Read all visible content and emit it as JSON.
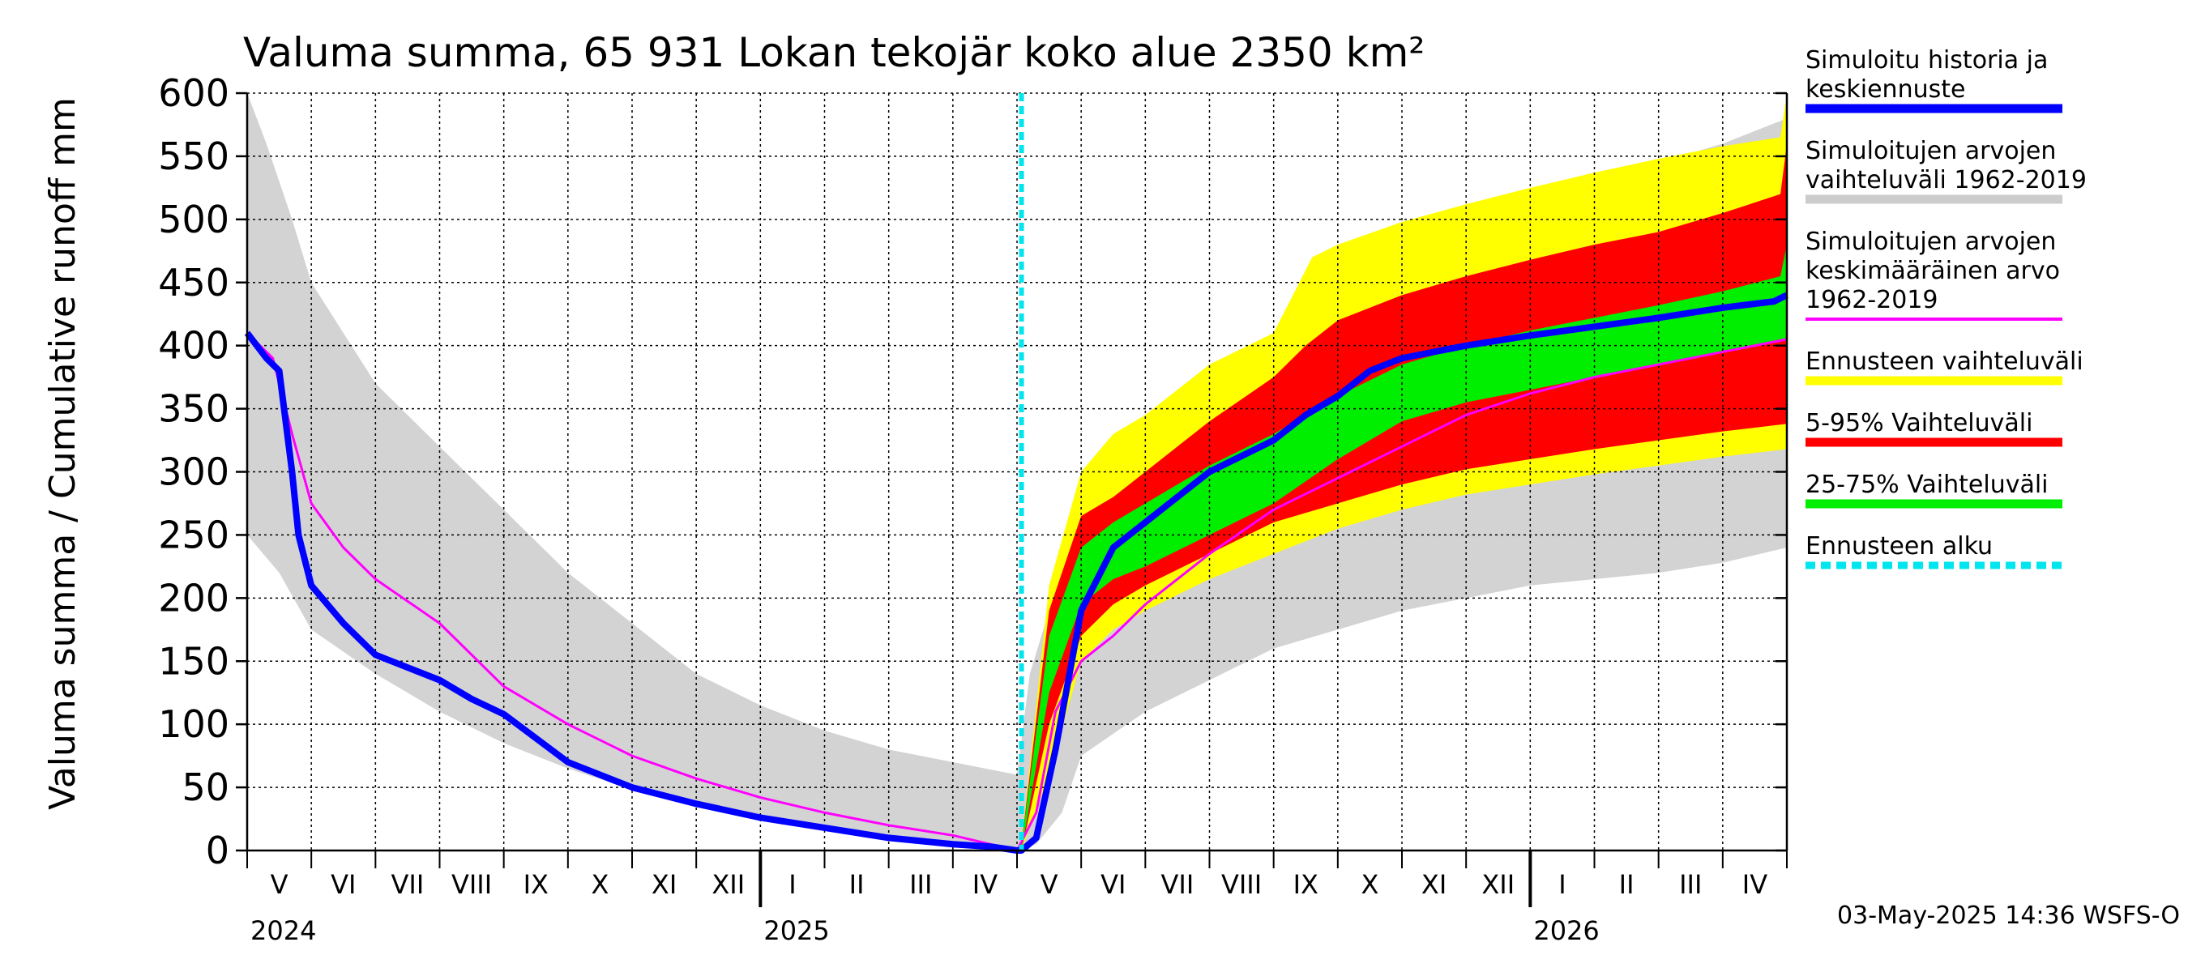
{
  "chart_data": {
    "type": "area",
    "title": "Valuma summa, 65 931 Lokan tekojär koko alue 2350 km²",
    "ylabel": "Valuma summa / Cumulative runoff    mm",
    "ylim": [
      0,
      600
    ],
    "yticks": [
      0,
      50,
      100,
      150,
      200,
      250,
      300,
      350,
      400,
      450,
      500,
      550,
      600
    ],
    "xrange_months": [
      0,
      24
    ],
    "forecast_start_month": 12.07,
    "month_labels": [
      "V",
      "VI",
      "VII",
      "VIII",
      "IX",
      "X",
      "XI",
      "XII",
      "I",
      "II",
      "III",
      "IV",
      "V",
      "VI",
      "VII",
      "VIII",
      "IX",
      "X",
      "XI",
      "XII",
      "I",
      "II",
      "III",
      "IV"
    ],
    "year_labels": [
      {
        "label": "2024",
        "month": 0
      },
      {
        "label": "2025",
        "month": 8
      },
      {
        "label": "2026",
        "month": 20
      }
    ],
    "footer": "03-May-2025 14:36 WSFS-O",
    "legend": [
      {
        "label_lines": [
          "Simuloitu historia ja",
          "keskiennuste"
        ],
        "color": "#0000ff",
        "style": "line"
      },
      {
        "label_lines": [
          "Simuloitujen arvojen",
          "vaihteluväli 1962-2019"
        ],
        "color": "#cccccc",
        "style": "line"
      },
      {
        "label_lines": [
          "Simuloitujen arvojen",
          "keskimääräinen arvo",
          "   1962-2019"
        ],
        "color": "#ff00ff",
        "style": "thin"
      },
      {
        "label_lines": [
          "Ennusteen vaihteluväli"
        ],
        "color": "#ffff00",
        "style": "line"
      },
      {
        "label_lines": [
          "5-95% Vaihteluväli"
        ],
        "color": "#ff0000",
        "style": "line"
      },
      {
        "label_lines": [
          "25-75% Vaihteluväli"
        ],
        "color": "#00ee00",
        "style": "line"
      },
      {
        "label_lines": [
          "Ennusteen alku"
        ],
        "color": "#00e5ee",
        "style": "dashed"
      }
    ],
    "series": [
      {
        "name": "Simuloitujen arvojen vaihteluväli 1962-2019 (max)",
        "color": "#d3d3d3",
        "x": [
          0,
          0.3,
          0.7,
          1,
          1.5,
          2,
          3,
          4,
          5,
          6,
          7,
          8,
          9,
          10,
          11,
          12,
          12.2,
          12.5,
          13,
          14,
          15,
          16,
          17,
          18,
          19,
          20,
          21,
          22,
          23,
          24
        ],
        "y": [
          600,
          560,
          500,
          450,
          410,
          370,
          320,
          270,
          220,
          180,
          140,
          115,
          95,
          80,
          70,
          60,
          140,
          190,
          220,
          290,
          350,
          390,
          430,
          470,
          490,
          510,
          530,
          545,
          560,
          580
        ]
      },
      {
        "name": "Simuloitujen arvojen vaihteluväli 1962-2019 (min)",
        "color": "#d3d3d3",
        "x": [
          0,
          0.5,
          1,
          2,
          3,
          4,
          5,
          6,
          7,
          8,
          9,
          10,
          11,
          12,
          12.3,
          12.7,
          13,
          14,
          15,
          16,
          17,
          18,
          19,
          20,
          21,
          22,
          23,
          24
        ],
        "y": [
          250,
          220,
          175,
          140,
          110,
          85,
          65,
          48,
          36,
          27,
          19,
          12,
          5,
          0,
          5,
          30,
          75,
          110,
          135,
          160,
          175,
          190,
          200,
          210,
          215,
          220,
          228,
          240
        ]
      },
      {
        "name": "Ennusteen vaihteluväli (max)",
        "color": "#ffff00",
        "x": [
          12.07,
          12.5,
          13,
          13.5,
          14,
          15,
          16,
          16.3,
          16.6,
          17,
          18,
          19,
          20,
          21,
          22,
          23,
          23.9,
          24
        ],
        "y": [
          5,
          210,
          300,
          330,
          345,
          385,
          410,
          440,
          470,
          480,
          498,
          512,
          525,
          537,
          548,
          558,
          565,
          600
        ]
      },
      {
        "name": "Ennusteen vaihteluväli (min)",
        "color": "#ffff00",
        "x": [
          12.07,
          12.5,
          13,
          13.5,
          14,
          15,
          16,
          17,
          18,
          19,
          20,
          21,
          22,
          23,
          24
        ],
        "y": [
          0,
          60,
          150,
          175,
          190,
          215,
          235,
          255,
          270,
          282,
          290,
          298,
          305,
          312,
          318
        ]
      },
      {
        "name": "5-95% Vaihteluväli (max)",
        "color": "#ff0000",
        "x": [
          12.07,
          12.5,
          13,
          13.5,
          14,
          15,
          16,
          16.5,
          17,
          18,
          19,
          20,
          21,
          22,
          23,
          23.9,
          24
        ],
        "y": [
          5,
          190,
          265,
          280,
          300,
          340,
          375,
          400,
          420,
          440,
          455,
          468,
          480,
          490,
          505,
          520,
          560
        ]
      },
      {
        "name": "5-95% Vaihteluväli (min)",
        "color": "#ff0000",
        "x": [
          12.07,
          12.5,
          13,
          13.5,
          14,
          15,
          16,
          17,
          18,
          19,
          20,
          21,
          22,
          23,
          24
        ],
        "y": [
          0,
          100,
          170,
          195,
          210,
          235,
          260,
          275,
          290,
          302,
          310,
          318,
          325,
          332,
          338
        ]
      },
      {
        "name": "25-75% Vaihteluväli (max)",
        "color": "#00ee00",
        "x": [
          12.07,
          12.5,
          13,
          13.5,
          14,
          15,
          16,
          17,
          18,
          19,
          20,
          21,
          22,
          23,
          23.9,
          24
        ],
        "y": [
          5,
          170,
          240,
          260,
          275,
          305,
          330,
          360,
          385,
          400,
          412,
          422,
          432,
          443,
          455,
          480
        ]
      },
      {
        "name": "25-75% Vaihteluväli (min)",
        "color": "#00ee00",
        "x": [
          12.07,
          12.5,
          13,
          13.5,
          14,
          15,
          16,
          17,
          18,
          19,
          20,
          21,
          22,
          23,
          24
        ],
        "y": [
          0,
          125,
          195,
          215,
          225,
          250,
          275,
          310,
          340,
          355,
          365,
          375,
          385,
          395,
          405
        ]
      },
      {
        "name": "Simuloitujen arvojen keskimääräinen arvo 1962-2019",
        "color": "#ff00ff",
        "x": [
          0,
          0.4,
          0.7,
          1,
          1.5,
          2,
          3,
          4,
          5,
          6,
          7,
          8,
          9,
          10,
          11,
          12,
          12.3,
          12.6,
          13,
          13.5,
          14,
          15,
          16,
          17,
          18,
          19,
          20,
          21,
          22,
          23,
          24
        ],
        "y": [
          410,
          390,
          330,
          275,
          240,
          215,
          180,
          130,
          100,
          75,
          57,
          42,
          30,
          20,
          12,
          0,
          30,
          110,
          150,
          170,
          195,
          235,
          270,
          295,
          320,
          345,
          362,
          375,
          385,
          395,
          405
        ]
      },
      {
        "name": "Simuloitu historia ja keskiennuste",
        "color": "#0000ff",
        "x": [
          0,
          0.3,
          0.5,
          0.7,
          0.8,
          1,
          1.5,
          2,
          2.5,
          3,
          3.5,
          4,
          5,
          6,
          7,
          8,
          9,
          10,
          11,
          11.6,
          12,
          12.07,
          12.3,
          12.6,
          13,
          13.5,
          14,
          14.5,
          15,
          16,
          16.5,
          17,
          17.5,
          18,
          19,
          20,
          21,
          22,
          23,
          23.8,
          24
        ],
        "y": [
          410,
          390,
          380,
          300,
          250,
          210,
          180,
          155,
          145,
          135,
          120,
          108,
          70,
          50,
          37,
          26,
          18,
          10,
          5,
          3,
          0,
          0,
          10,
          80,
          190,
          240,
          260,
          280,
          300,
          325,
          345,
          360,
          380,
          390,
          400,
          408,
          415,
          422,
          430,
          435,
          440
        ]
      }
    ]
  }
}
